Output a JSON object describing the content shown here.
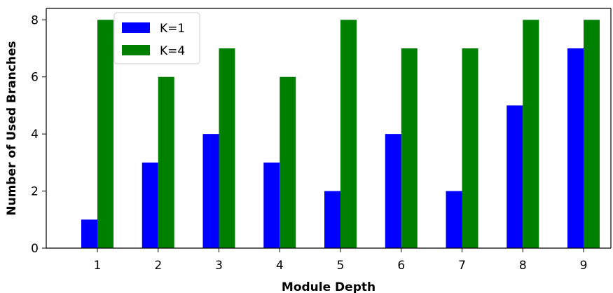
{
  "chart_data": {
    "type": "bar",
    "title": "",
    "xlabel": "Module Depth",
    "ylabel": "Number of Used Branches",
    "categories": [
      "1",
      "2",
      "3",
      "4",
      "5",
      "6",
      "7",
      "8",
      "9"
    ],
    "series": [
      {
        "name": "K=1",
        "color": "#0000ff",
        "values": [
          1,
          3,
          4,
          3,
          2,
          4,
          2,
          5,
          7
        ]
      },
      {
        "name": "K=4",
        "color": "#008000",
        "values": [
          8,
          6,
          7,
          6,
          8,
          7,
          7,
          8,
          8
        ]
      }
    ],
    "ylim": [
      0,
      8.4
    ],
    "yticks": [
      "0",
      "2",
      "4",
      "6",
      "8"
    ],
    "grid": false,
    "legend": "top-left"
  }
}
